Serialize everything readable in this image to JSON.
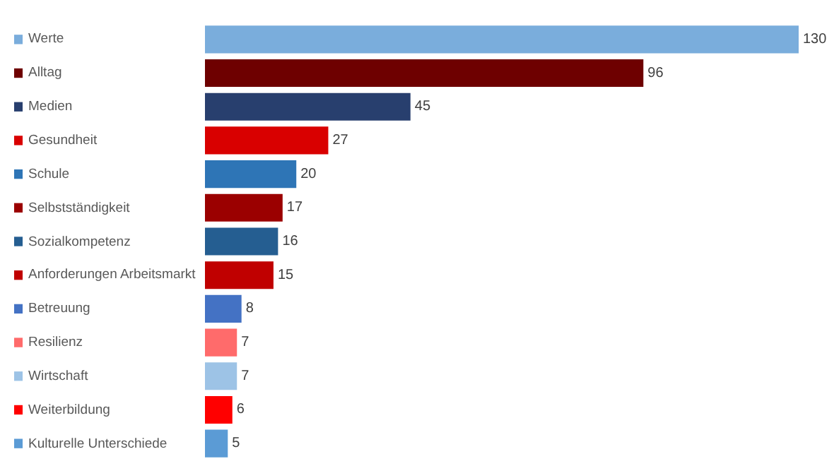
{
  "chart_data": {
    "type": "bar",
    "orientation": "horizontal",
    "data_labels": true,
    "legend": false,
    "categories": [
      "Werte",
      "Alltag",
      "Medien",
      "Gesundheit",
      "Schule",
      "Selbstständigkeit",
      "Sozialkompetenz",
      "Anforderungen Arbeitsmarkt",
      "Betreuung",
      "Resilienz",
      "Wirtschaft",
      "Weiterbildung",
      "Kulturelle Unterschiede"
    ],
    "values": [
      130,
      96,
      45,
      27,
      20,
      17,
      16,
      15,
      8,
      7,
      7,
      6,
      5
    ],
    "colors": [
      "#7aaddc",
      "#6e0000",
      "#283f6e",
      "#d90000",
      "#2e75b6",
      "#9b0000",
      "#255e91",
      "#c00000",
      "#4472c4",
      "#ff6b6b",
      "#9dc3e6",
      "#ff0000",
      "#5b9bd5"
    ]
  }
}
